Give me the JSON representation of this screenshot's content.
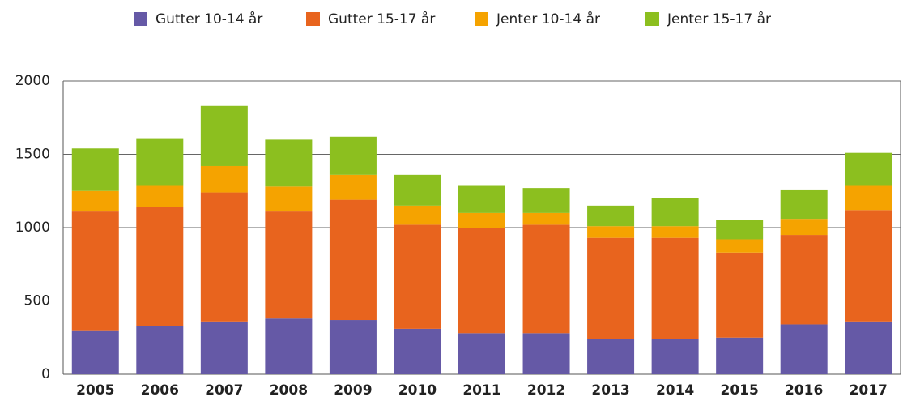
{
  "chart_data": {
    "type": "stacked_bar",
    "categories": [
      "2005",
      "2006",
      "2007",
      "2008",
      "2009",
      "2010",
      "2011",
      "2012",
      "2013",
      "2014",
      "2015",
      "2016",
      "2017"
    ],
    "series": [
      {
        "name": "Gutter 10-14 år",
        "color": "#6559a6",
        "values": [
          300,
          330,
          360,
          380,
          370,
          310,
          280,
          280,
          240,
          240,
          250,
          340,
          360
        ]
      },
      {
        "name": "Gutter 15-17 år",
        "color": "#e8641e",
        "values": [
          810,
          810,
          880,
          730,
          820,
          710,
          720,
          740,
          690,
          690,
          580,
          610,
          760
        ]
      },
      {
        "name": "Jenter 10-14 år",
        "color": "#f5a300",
        "values": [
          140,
          150,
          180,
          170,
          170,
          130,
          100,
          80,
          80,
          80,
          90,
          110,
          170
        ]
      },
      {
        "name": "Jenter 15-17 år",
        "color": "#8cbf1f",
        "values": [
          290,
          320,
          410,
          320,
          260,
          210,
          190,
          170,
          140,
          190,
          130,
          200,
          220
        ]
      }
    ],
    "ylim": [
      0,
      2000
    ],
    "yticks": [
      0,
      500,
      1000,
      1500,
      2000
    ],
    "grid": true,
    "legend": "top"
  }
}
